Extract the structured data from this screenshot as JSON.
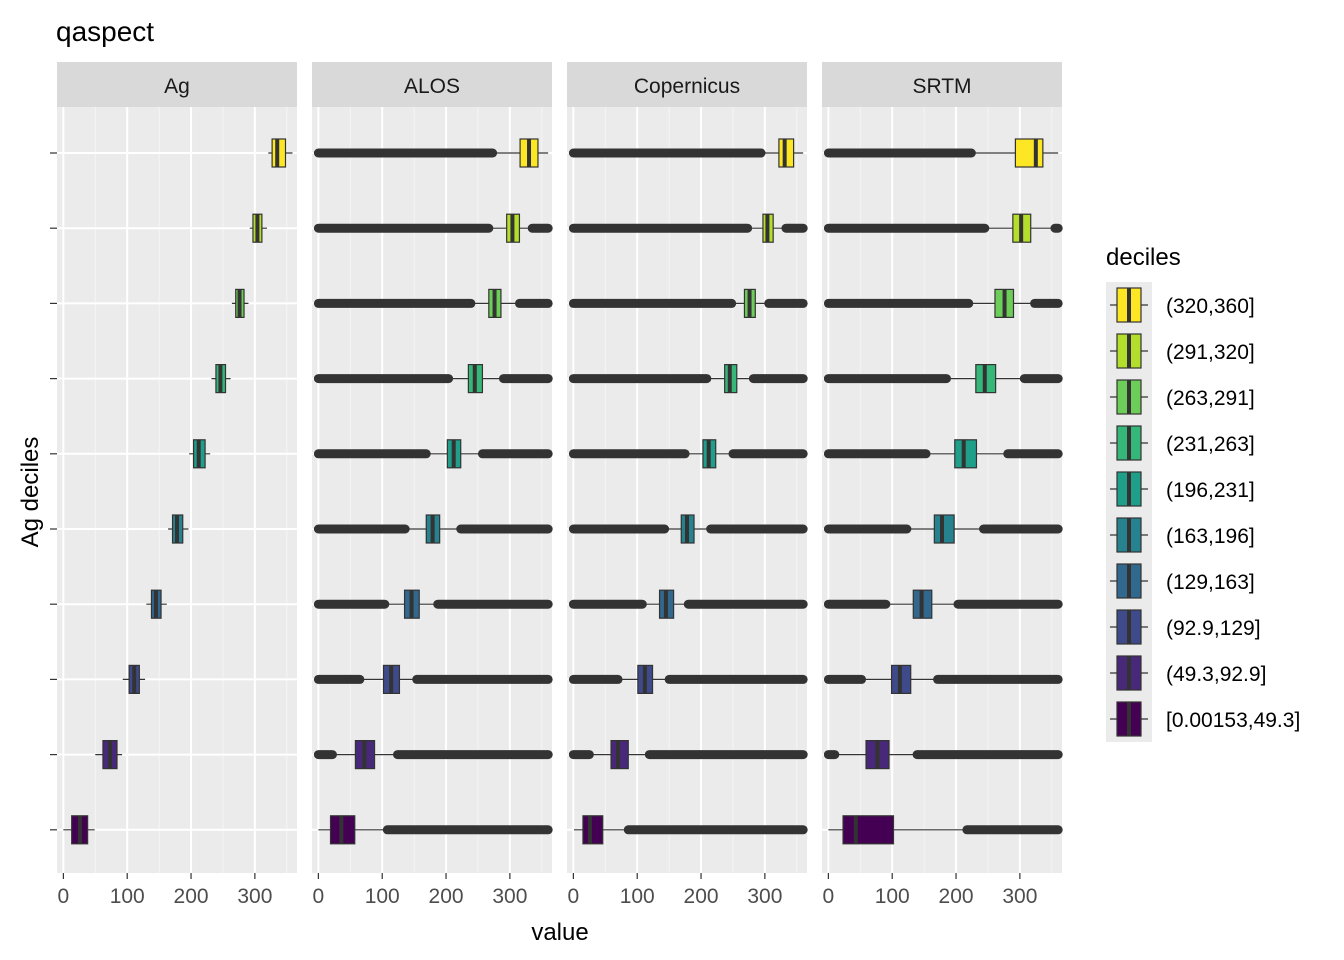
{
  "chart_data": {
    "type": "boxplot",
    "title": "qaspect",
    "xlabel": "value",
    "ylabel": "Ag deciles",
    "xlim": [
      -10,
      366
    ],
    "x_ticks": [
      0,
      100,
      200,
      300
    ],
    "x_tick_labels": [
      "0",
      "100",
      "200",
      "300"
    ],
    "panels": [
      "Ag",
      "ALOS",
      "Copernicus",
      "SRTM"
    ],
    "legend": {
      "title": "deciles",
      "position": "right",
      "entries": [
        "(320,360]",
        "(291,320]",
        "(263,291]",
        "(231,263]",
        "(196,231]",
        "(163,196]",
        "(129,163]",
        "(92.9,129]",
        "(49.3,92.9]",
        "[0.00153,49.3]"
      ],
      "colors": [
        "#FDE725",
        "#B4DE2C",
        "#6DCD59",
        "#35B779",
        "#1F9E89",
        "#26828E",
        "#31688E",
        "#3E4A89",
        "#482878",
        "#440154"
      ]
    },
    "deciles_bottom_to_top": [
      "[0.00153,49.3]",
      "(49.3,92.9]",
      "(92.9,129]",
      "(129,163]",
      "(163,196]",
      "(196,231]",
      "(231,263]",
      "(263,291]",
      "(291,320]",
      "(320,360]"
    ],
    "series": [
      {
        "name": "Ag",
        "boxes": [
          {
            "q1": 13,
            "median": 26,
            "q3": 38,
            "whisker_low": 0,
            "whisker_high": 49,
            "outlier_ranges": []
          },
          {
            "q1": 62,
            "median": 73,
            "q3": 84,
            "whisker_low": 50,
            "whisker_high": 92,
            "outlier_ranges": []
          },
          {
            "q1": 103,
            "median": 111,
            "q3": 119,
            "whisker_low": 93,
            "whisker_high": 128,
            "outlier_ranges": []
          },
          {
            "q1": 138,
            "median": 145,
            "q3": 153,
            "whisker_low": 130,
            "whisker_high": 162,
            "outlier_ranges": []
          },
          {
            "q1": 171,
            "median": 178,
            "q3": 187,
            "whisker_low": 164,
            "whisker_high": 196,
            "outlier_ranges": []
          },
          {
            "q1": 204,
            "median": 212,
            "q3": 222,
            "whisker_low": 197,
            "whisker_high": 230,
            "outlier_ranges": []
          },
          {
            "q1": 239,
            "median": 246,
            "q3": 254,
            "whisker_low": 232,
            "whisker_high": 262,
            "outlier_ranges": []
          },
          {
            "q1": 270,
            "median": 276,
            "q3": 283,
            "whisker_low": 264,
            "whisker_high": 290,
            "outlier_ranges": []
          },
          {
            "q1": 297,
            "median": 304,
            "q3": 311,
            "whisker_low": 292,
            "whisker_high": 319,
            "outlier_ranges": []
          },
          {
            "q1": 327,
            "median": 335,
            "q3": 348,
            "whisker_low": 321,
            "whisker_high": 359,
            "outlier_ranges": []
          }
        ]
      },
      {
        "name": "ALOS",
        "boxes": [
          {
            "q1": 19,
            "median": 36,
            "q3": 57,
            "whisker_low": 0,
            "whisker_high": 105,
            "outlier_ranges": [
              [
                108,
                360
              ]
            ]
          },
          {
            "q1": 58,
            "median": 72,
            "q3": 88,
            "whisker_low": 25,
            "whisker_high": 121,
            "outlier_ranges": [
              [
                0,
                22
              ],
              [
                124,
                360
              ]
            ]
          },
          {
            "q1": 102,
            "median": 114,
            "q3": 127,
            "whisker_low": 68,
            "whisker_high": 151,
            "outlier_ranges": [
              [
                0,
                65
              ],
              [
                154,
                360
              ]
            ]
          },
          {
            "q1": 135,
            "median": 146,
            "q3": 158,
            "whisker_low": 107,
            "whisker_high": 184,
            "outlier_ranges": [
              [
                0,
                104
              ],
              [
                187,
                360
              ]
            ]
          },
          {
            "q1": 169,
            "median": 179,
            "q3": 190,
            "whisker_low": 139,
            "whisker_high": 220,
            "outlier_ranges": [
              [
                0,
                136
              ],
              [
                223,
                360
              ]
            ]
          },
          {
            "q1": 202,
            "median": 212,
            "q3": 223,
            "whisker_low": 172,
            "whisker_high": 254,
            "outlier_ranges": [
              [
                0,
                169
              ],
              [
                257,
                360
              ]
            ]
          },
          {
            "q1": 235,
            "median": 245,
            "q3": 257,
            "whisker_low": 207,
            "whisker_high": 287,
            "outlier_ranges": [
              [
                0,
                204
              ],
              [
                290,
                360
              ]
            ]
          },
          {
            "q1": 267,
            "median": 276,
            "q3": 286,
            "whisker_low": 242,
            "whisker_high": 312,
            "outlier_ranges": [
              [
                0,
                239
              ],
              [
                315,
                360
              ]
            ]
          },
          {
            "q1": 295,
            "median": 304,
            "q3": 315,
            "whisker_low": 270,
            "whisker_high": 332,
            "outlier_ranges": [
              [
                0,
                267
              ],
              [
                335,
                360
              ]
            ]
          },
          {
            "q1": 316,
            "median": 330,
            "q3": 344,
            "whisker_low": 276,
            "whisker_high": 360,
            "outlier_ranges": [
              [
                0,
                273
              ]
            ]
          }
        ]
      },
      {
        "name": "Copernicus",
        "boxes": [
          {
            "q1": 15,
            "median": 26,
            "q3": 46,
            "whisker_low": 1,
            "whisker_high": 83,
            "outlier_ranges": [
              [
                86,
                360
              ]
            ]
          },
          {
            "q1": 59,
            "median": 70,
            "q3": 86,
            "whisker_low": 28,
            "whisker_high": 116,
            "outlier_ranges": [
              [
                0,
                25
              ],
              [
                119,
                360
              ]
            ]
          },
          {
            "q1": 101,
            "median": 112,
            "q3": 124,
            "whisker_low": 73,
            "whisker_high": 147,
            "outlier_ranges": [
              [
                0,
                70
              ],
              [
                150,
                360
              ]
            ]
          },
          {
            "q1": 135,
            "median": 145,
            "q3": 157,
            "whisker_low": 111,
            "whisker_high": 177,
            "outlier_ranges": [
              [
                0,
                108
              ],
              [
                180,
                360
              ]
            ]
          },
          {
            "q1": 169,
            "median": 178,
            "q3": 189,
            "whisker_low": 146,
            "whisker_high": 212,
            "outlier_ranges": [
              [
                0,
                143
              ],
              [
                215,
                360
              ]
            ]
          },
          {
            "q1": 203,
            "median": 212,
            "q3": 223,
            "whisker_low": 178,
            "whisker_high": 247,
            "outlier_ranges": [
              [
                0,
                175
              ],
              [
                250,
                360
              ]
            ]
          },
          {
            "q1": 237,
            "median": 245,
            "q3": 256,
            "whisker_low": 212,
            "whisker_high": 279,
            "outlier_ranges": [
              [
                0,
                209
              ],
              [
                282,
                360
              ]
            ]
          },
          {
            "q1": 268,
            "median": 276,
            "q3": 285,
            "whisker_low": 251,
            "whisker_high": 303,
            "outlier_ranges": [
              [
                0,
                248
              ],
              [
                306,
                360
              ]
            ]
          },
          {
            "q1": 297,
            "median": 304,
            "q3": 313,
            "whisker_low": 276,
            "whisker_high": 330,
            "outlier_ranges": [
              [
                0,
                273
              ],
              [
                333,
                360
              ]
            ]
          },
          {
            "q1": 322,
            "median": 331,
            "q3": 345,
            "whisker_low": 297,
            "whisker_high": 360,
            "outlier_ranges": [
              [
                0,
                294
              ]
            ]
          }
        ]
      },
      {
        "name": "SRTM",
        "boxes": [
          {
            "q1": 23,
            "median": 43,
            "q3": 102,
            "whisker_low": 0,
            "whisker_high": 214,
            "outlier_ranges": [
              [
                217,
                360
              ]
            ]
          },
          {
            "q1": 59,
            "median": 77,
            "q3": 95,
            "whisker_low": 13,
            "whisker_high": 136,
            "outlier_ranges": [
              [
                0,
                10
              ],
              [
                139,
                360
              ]
            ]
          },
          {
            "q1": 99,
            "median": 112,
            "q3": 129,
            "whisker_low": 55,
            "whisker_high": 168,
            "outlier_ranges": [
              [
                0,
                52
              ],
              [
                171,
                360
              ]
            ]
          },
          {
            "q1": 133,
            "median": 146,
            "q3": 162,
            "whisker_low": 93,
            "whisker_high": 200,
            "outlier_ranges": [
              [
                0,
                90
              ],
              [
                203,
                360
              ]
            ]
          },
          {
            "q1": 166,
            "median": 178,
            "q3": 197,
            "whisker_low": 126,
            "whisker_high": 240,
            "outlier_ranges": [
              [
                0,
                123
              ],
              [
                243,
                360
              ]
            ]
          },
          {
            "q1": 198,
            "median": 212,
            "q3": 232,
            "whisker_low": 156,
            "whisker_high": 278,
            "outlier_ranges": [
              [
                0,
                153
              ],
              [
                281,
                360
              ]
            ]
          },
          {
            "q1": 231,
            "median": 245,
            "q3": 262,
            "whisker_low": 188,
            "whisker_high": 304,
            "outlier_ranges": [
              [
                0,
                185
              ],
              [
                307,
                360
              ]
            ]
          },
          {
            "q1": 261,
            "median": 276,
            "q3": 290,
            "whisker_low": 223,
            "whisker_high": 320,
            "outlier_ranges": [
              [
                0,
                220
              ],
              [
                323,
                360
              ]
            ]
          },
          {
            "q1": 289,
            "median": 302,
            "q3": 317,
            "whisker_low": 248,
            "whisker_high": 352,
            "outlier_ranges": [
              [
                0,
                245
              ],
              [
                355,
                360
              ]
            ]
          },
          {
            "q1": 293,
            "median": 325,
            "q3": 336,
            "whisker_low": 227,
            "whisker_high": 360,
            "outlier_ranges": [
              [
                0,
                224
              ]
            ]
          }
        ]
      }
    ]
  }
}
